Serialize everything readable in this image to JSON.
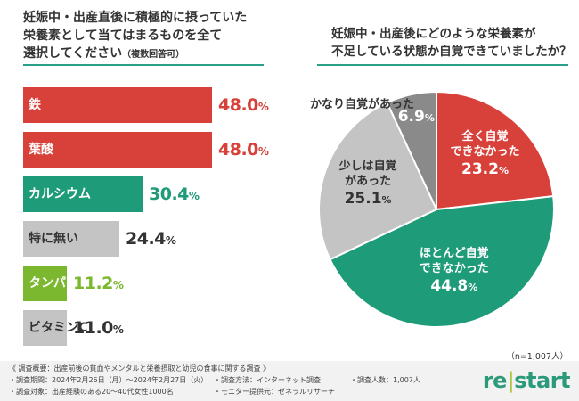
{
  "left_title": {
    "line1": "妊娠中・出産直後に積極的に摂っていた",
    "line2": "栄養素として当てはまるものを全て",
    "line3": "選択してください",
    "note": "（複数回答可）"
  },
  "right_title": {
    "line1": "妊娠中・出産後にどのような栄養素が",
    "line2": "不足している状態か自覚できていましたか？"
  },
  "sample_size": "（n=1,007人）",
  "footer": {
    "line1": "《 調査概要：出産前後の貧血やメンタルと栄養摂取と幼児の食事に関する調査 》",
    "period": "・調査期間：2024年2月26日（月）〜2024年2月27日（火）",
    "method": "・調査方法：インターネット調査",
    "count": "・調査人数：1,007人",
    "target": "・調査対象：出産経験のある20〜40代女性1000名",
    "panel": "・モニター提供元：ゼネラルリサーチ"
  },
  "logo": {
    "part1": "re",
    "sep": "|",
    "part2": "start"
  },
  "chart_data": [
    {
      "type": "bar",
      "orientation": "horizontal",
      "categories": [
        "鉄",
        "葉酸",
        "カルシウム",
        "特に無い",
        "タンパク質",
        "ビタミンC"
      ],
      "values": [
        48.0,
        48.0,
        30.4,
        24.4,
        11.2,
        11.0
      ],
      "value_labels": [
        "48.0",
        "48.0",
        "30.4",
        "24.4",
        "11.2",
        "11.0"
      ],
      "unit": "%",
      "colors": [
        "#d8403a",
        "#d8403a",
        "#1e9b78",
        "#c4c4c4",
        "#7cb82f",
        "#c4c4c4"
      ],
      "label_colors": [
        "#ffffff",
        "#ffffff",
        "#ffffff",
        "#333333",
        "#ffffff",
        "#333333"
      ],
      "value_colors": [
        "#d8403a",
        "#d8403a",
        "#1e9b78",
        "#333333",
        "#7cb82f",
        "#333333"
      ]
    },
    {
      "type": "pie",
      "slices": [
        {
          "label_lines": [
            "全く自覚",
            "できなかった"
          ],
          "value": 23.2,
          "value_label": "23.2",
          "color": "#d8403a"
        },
        {
          "label_lines": [
            "ほとんど自覚",
            "できなかった"
          ],
          "value": 44.8,
          "value_label": "44.8",
          "color": "#1e9b78"
        },
        {
          "label_lines": [
            "少しは自覚",
            "があった"
          ],
          "value": 25.1,
          "value_label": "25.1",
          "color": "#c4c4c4"
        },
        {
          "label_lines": [
            "かなり自覚があった"
          ],
          "value": 6.9,
          "value_label": "6.9",
          "color": "#8a8a8a"
        }
      ],
      "unit": "%",
      "start": "top",
      "direction": "clockwise"
    }
  ]
}
